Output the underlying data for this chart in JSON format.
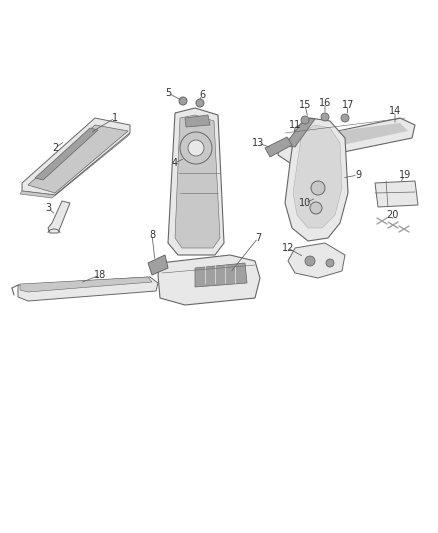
{
  "bg_color": "#ffffff",
  "line_color": "#666666",
  "fill_light": "#e8e8e8",
  "fill_mid": "#c8c8c8",
  "fill_dark": "#a0a0a0",
  "fill_darker": "#808080",
  "label_color": "#333333",
  "fig_width": 4.38,
  "fig_height": 5.33,
  "dpi": 100
}
